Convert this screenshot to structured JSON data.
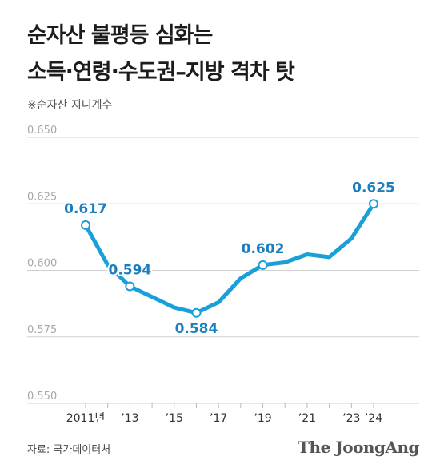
{
  "header": {
    "title_line1": "순자산 불평등 심화는",
    "title_line2": "소득·연령·수도권–지방 격차 탓",
    "subtitle": "※순자산 지니계수"
  },
  "footer": {
    "source": "자료: 국가데이터처",
    "brand": "The JoongAng"
  },
  "colors": {
    "line": "#1aa0d8",
    "label": "#1b7fbf",
    "grid": "#d0d0d0",
    "axis_text": "#a8a8a8"
  },
  "chart_data": {
    "type": "line",
    "title": "순자산 불평등 심화는 소득·연령·수도권–지방 격차 탓",
    "subtitle": "※순자산 지니계수",
    "ylim": [
      0.55,
      0.65
    ],
    "yticks": [
      "0.650",
      "0.625",
      "0.600",
      "0.575",
      "0.550"
    ],
    "ytick_values": [
      0.65,
      0.625,
      0.6,
      0.575,
      0.55
    ],
    "xlim": [
      2011,
      2024
    ],
    "x_ticks": [
      {
        "x": 2011,
        "label": "2011년"
      },
      {
        "x": 2013,
        "label": "’13"
      },
      {
        "x": 2015,
        "label": "’15"
      },
      {
        "x": 2017,
        "label": "’17"
      },
      {
        "x": 2019,
        "label": "’19"
      },
      {
        "x": 2021,
        "label": "’21"
      },
      {
        "x": 2023,
        "label": "’23"
      },
      {
        "x": 2024,
        "label": "’24"
      }
    ],
    "x": [
      2011,
      2012,
      2013,
      2014,
      2015,
      2016,
      2017,
      2018,
      2019,
      2020,
      2021,
      2022,
      2023,
      2024
    ],
    "values": [
      0.617,
      0.602,
      0.594,
      0.59,
      0.586,
      0.584,
      0.588,
      0.597,
      0.602,
      0.603,
      0.606,
      0.605,
      0.612,
      0.625
    ],
    "annotations": [
      {
        "x": 2011,
        "y": 0.617,
        "label": "0.617",
        "pos": "above"
      },
      {
        "x": 2013,
        "y": 0.594,
        "label": "0.594",
        "pos": "above"
      },
      {
        "x": 2016,
        "y": 0.584,
        "label": "0.584",
        "pos": "below"
      },
      {
        "x": 2019,
        "y": 0.602,
        "label": "0.602",
        "pos": "above"
      },
      {
        "x": 2024,
        "y": 0.625,
        "label": "0.625",
        "pos": "above"
      }
    ],
    "grid": true
  }
}
